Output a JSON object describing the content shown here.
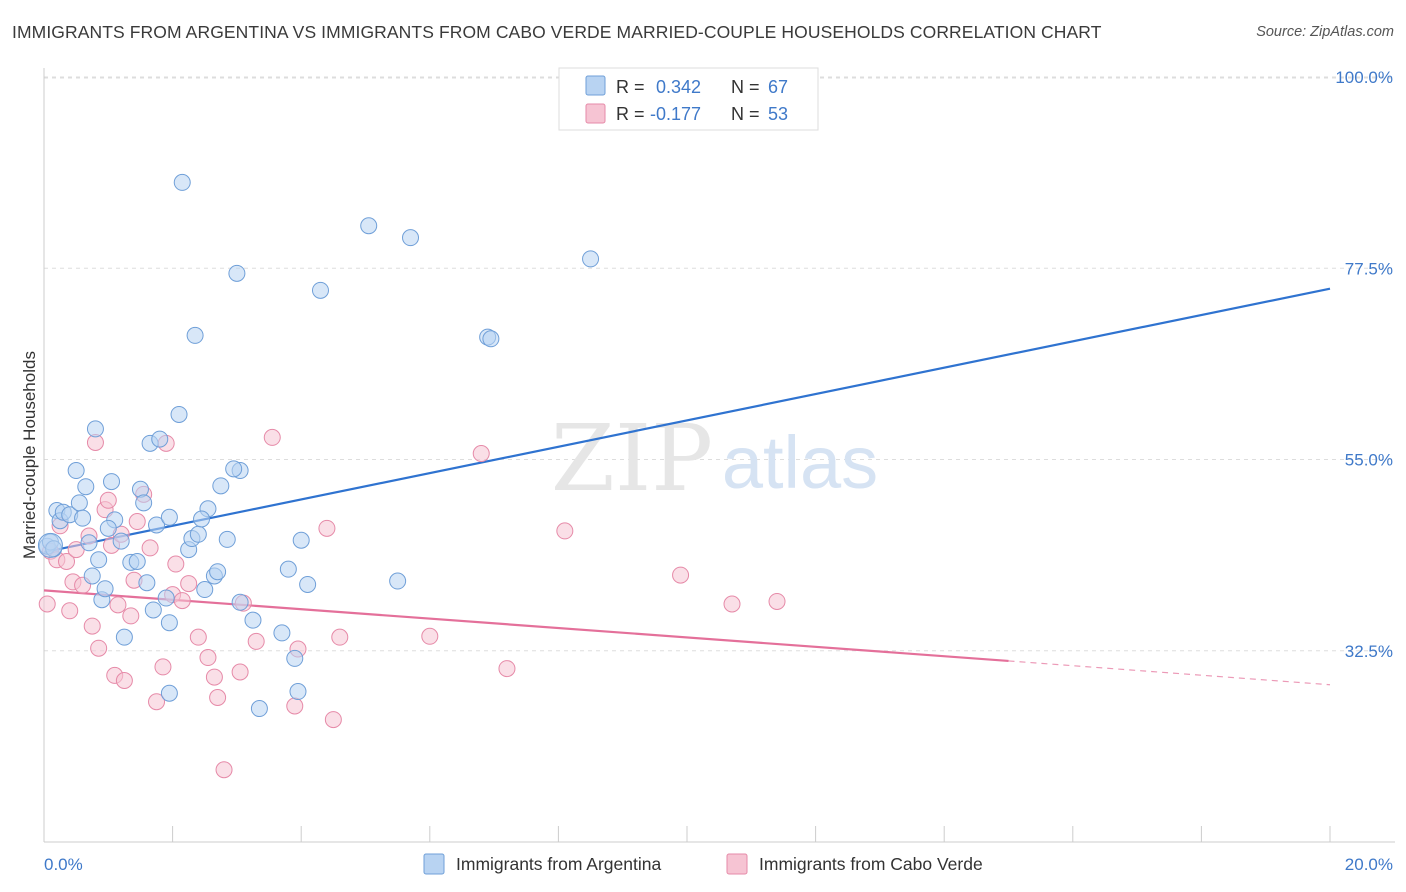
{
  "title": "IMMIGRANTS FROM ARGENTINA VS IMMIGRANTS FROM CABO VERDE MARRIED-COUPLE HOUSEHOLDS CORRELATION CHART",
  "source": "Source: ZipAtlas.com",
  "watermark": {
    "zip": "ZIP",
    "atlas": "atlas"
  },
  "colors": {
    "argentina_fill": "#b8d3f2",
    "argentina_stroke": "#6f9fd8",
    "argentina_line": "#2f73d0",
    "caboverde_fill": "#f6c4d3",
    "caboverde_stroke": "#e68aa8",
    "caboverde_line": "#e4709a",
    "tick_label": "#3f79c9",
    "grid": "#dddddd"
  },
  "stats_legend": {
    "rows": [
      {
        "r_label": "R = ",
        "r_value": "0.342",
        "n_label": "N = ",
        "n_value": "67"
      },
      {
        "r_label": "R = ",
        "r_value": "-0.177",
        "n_label": "N = ",
        "n_value": "53"
      }
    ]
  },
  "chart_data": {
    "type": "scatter",
    "title": "IMMIGRANTS FROM ARGENTINA VS IMMIGRANTS FROM CABO VERDE MARRIED-COUPLE HOUSEHOLDS CORRELATION CHART",
    "xlabel": "",
    "ylabel": "Married-couple Households",
    "xlim": [
      0,
      20
    ],
    "ylim": [
      10,
      102
    ],
    "x_tick_labels": [
      "0.0%",
      "20.0%"
    ],
    "y_ticks": [
      32.5,
      55.0,
      77.5,
      100.0
    ],
    "y_tick_labels": [
      "32.5%",
      "55.0%",
      "77.5%",
      "100.0%"
    ],
    "grid": true,
    "legend_position": "bottom",
    "series": [
      {
        "name": "Immigrants from Argentina",
        "r": 0.342,
        "n": 67,
        "trend": {
          "x": [
            0,
            20
          ],
          "y": [
            44.1,
            75.1
          ]
        },
        "points": [
          [
            0.05,
            44.8
          ],
          [
            0.1,
            45.3
          ],
          [
            0.15,
            44.5
          ],
          [
            0.2,
            49.0
          ],
          [
            0.25,
            47.8
          ],
          [
            0.3,
            48.8
          ],
          [
            0.4,
            48.5
          ],
          [
            0.5,
            53.7
          ],
          [
            0.55,
            49.9
          ],
          [
            0.6,
            48.1
          ],
          [
            0.7,
            45.2
          ],
          [
            0.8,
            58.6
          ],
          [
            0.85,
            43.2
          ],
          [
            0.9,
            38.5
          ],
          [
            0.95,
            39.8
          ],
          [
            1.05,
            52.4
          ],
          [
            1.1,
            47.9
          ],
          [
            1.2,
            45.4
          ],
          [
            1.25,
            34.1
          ],
          [
            1.35,
            42.9
          ],
          [
            1.5,
            51.5
          ],
          [
            1.45,
            43.0
          ],
          [
            1.55,
            49.9
          ],
          [
            1.65,
            56.9
          ],
          [
            1.7,
            37.3
          ],
          [
            1.75,
            47.3
          ],
          [
            1.8,
            57.4
          ],
          [
            1.9,
            38.7
          ],
          [
            1.95,
            48.2
          ],
          [
            2.1,
            60.3
          ],
          [
            2.25,
            44.4
          ],
          [
            2.3,
            45.7
          ],
          [
            2.4,
            46.2
          ],
          [
            2.5,
            39.7
          ],
          [
            2.55,
            49.2
          ],
          [
            2.65,
            41.3
          ],
          [
            2.7,
            41.8
          ],
          [
            2.35,
            69.6
          ],
          [
            2.75,
            51.9
          ],
          [
            2.85,
            45.6
          ],
          [
            3.05,
            53.7
          ],
          [
            2.15,
            87.6
          ],
          [
            2.95,
            53.9
          ],
          [
            3.05,
            38.2
          ],
          [
            3.25,
            36.1
          ],
          [
            3.35,
            25.7
          ],
          [
            3.7,
            34.6
          ],
          [
            3.8,
            42.1
          ],
          [
            3.9,
            31.6
          ],
          [
            3.95,
            27.7
          ],
          [
            4.0,
            45.5
          ],
          [
            4.1,
            40.3
          ],
          [
            4.3,
            74.9
          ],
          [
            5.05,
            82.5
          ],
          [
            5.7,
            81.1
          ],
          [
            5.5,
            40.7
          ],
          [
            6.9,
            69.4
          ],
          [
            6.95,
            69.2
          ],
          [
            8.5,
            78.6
          ],
          [
            1.95,
            35.8
          ],
          [
            3.0,
            76.9
          ],
          [
            2.45,
            48.0
          ],
          [
            1.0,
            46.9
          ],
          [
            0.75,
            41.3
          ],
          [
            1.6,
            40.5
          ],
          [
            1.95,
            27.5
          ],
          [
            0.65,
            51.8
          ]
        ]
      },
      {
        "name": "Immigrants from Cabo Verde",
        "r": -0.177,
        "n": 53,
        "trend": {
          "x": [
            0,
            15
          ],
          "y": [
            39.6,
            31.3
          ]
        },
        "trend_dashed": {
          "x": [
            15,
            20
          ],
          "y": [
            31.3,
            28.5
          ]
        },
        "points": [
          [
            0.05,
            38.0
          ],
          [
            0.1,
            44.2
          ],
          [
            0.2,
            43.2
          ],
          [
            0.25,
            47.2
          ],
          [
            0.35,
            43.0
          ],
          [
            0.4,
            37.2
          ],
          [
            0.45,
            40.6
          ],
          [
            0.5,
            44.4
          ],
          [
            0.6,
            40.2
          ],
          [
            0.7,
            46.0
          ],
          [
            0.75,
            35.4
          ],
          [
            0.8,
            57.0
          ],
          [
            0.85,
            32.8
          ],
          [
            0.95,
            49.1
          ],
          [
            1.0,
            50.2
          ],
          [
            1.05,
            44.9
          ],
          [
            1.1,
            29.6
          ],
          [
            1.15,
            37.9
          ],
          [
            1.2,
            46.2
          ],
          [
            1.25,
            29.0
          ],
          [
            1.35,
            36.6
          ],
          [
            1.4,
            40.8
          ],
          [
            1.45,
            47.7
          ],
          [
            1.55,
            50.9
          ],
          [
            1.65,
            44.6
          ],
          [
            1.75,
            26.5
          ],
          [
            1.85,
            30.6
          ],
          [
            1.9,
            56.9
          ],
          [
            2.0,
            39.1
          ],
          [
            2.05,
            42.7
          ],
          [
            2.15,
            38.4
          ],
          [
            2.25,
            40.4
          ],
          [
            2.4,
            34.1
          ],
          [
            2.55,
            31.7
          ],
          [
            2.65,
            29.4
          ],
          [
            2.7,
            27.0
          ],
          [
            3.05,
            30.0
          ],
          [
            3.1,
            38.1
          ],
          [
            3.3,
            33.6
          ],
          [
            3.55,
            57.6
          ],
          [
            3.9,
            26.0
          ],
          [
            3.95,
            32.7
          ],
          [
            4.4,
            46.9
          ],
          [
            4.5,
            24.4
          ],
          [
            4.6,
            34.1
          ],
          [
            6.0,
            34.2
          ],
          [
            6.8,
            55.7
          ],
          [
            7.2,
            30.4
          ],
          [
            8.1,
            46.6
          ],
          [
            9.9,
            41.4
          ],
          [
            10.7,
            38.0
          ],
          [
            11.4,
            38.3
          ],
          [
            2.8,
            18.5
          ]
        ]
      }
    ]
  },
  "bottom_legend": [
    {
      "label": "Immigrants from Argentina"
    },
    {
      "label": "Immigrants from Cabo Verde"
    }
  ]
}
